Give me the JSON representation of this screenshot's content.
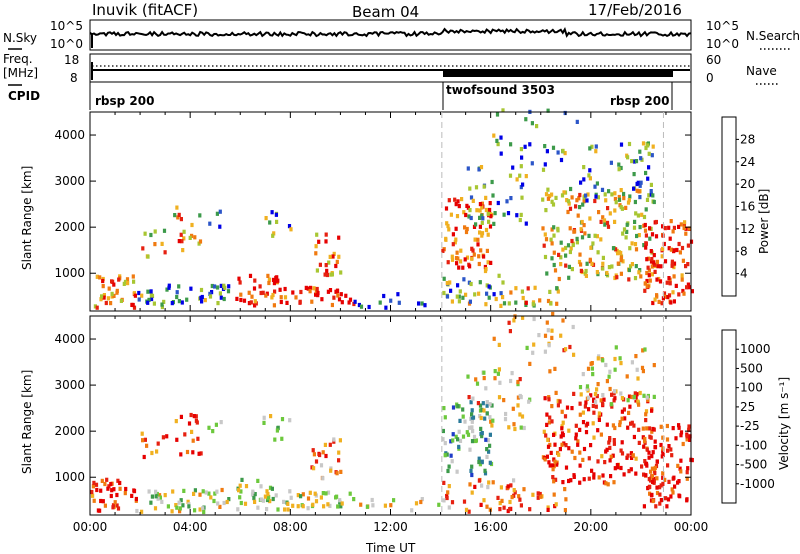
{
  "header": {
    "station": "Inuvik (fitACF)",
    "beam": "Beam 04",
    "date": "17/Feb/2016"
  },
  "noise_panel": {
    "left_label": "N.Sky",
    "right_label": "N.Search",
    "left_ticks": [
      "10^5",
      "10^0"
    ],
    "right_ticks": [
      "10^5",
      "10^0"
    ]
  },
  "freq_panel": {
    "left_label_1": "Freq.",
    "left_label_2": "[MHz]",
    "right_label": "Nave",
    "left_ticks": [
      "18",
      "8"
    ],
    "right_ticks": [
      "60",
      "0"
    ]
  },
  "cpid_panel": {
    "label": "CPID",
    "segments": [
      {
        "name": "rbsp 200",
        "start_ut": 0.0,
        "end_ut": 14.05
      },
      {
        "name": "twofsound 3503",
        "start_ut": 14.05,
        "end_ut": 22.9
      },
      {
        "name": "rbsp 200",
        "start_ut": 22.9,
        "end_ut": 24.0
      }
    ]
  },
  "chart_data": [
    {
      "type": "heatmap",
      "title": "",
      "ylabel": "Slant Range [km]",
      "xlabel": "",
      "xlim": [
        0,
        24
      ],
      "ylim": [
        180,
        4500
      ],
      "y_ticks": [
        1000,
        2000,
        3000,
        4000
      ],
      "colorbar": {
        "label": "Power [dB]",
        "ticks": [
          "4",
          "8",
          "12",
          "16",
          "20",
          "24",
          "28"
        ],
        "colors": [
          "#0000e6",
          "#2b55c8",
          "#3c9a4a",
          "#a8c632",
          "#f0b020",
          "#f07a10",
          "#e62010",
          "#e60000"
        ]
      }
    },
    {
      "type": "heatmap",
      "title": "",
      "ylabel": "Slant Range [km]",
      "xlabel": "Time UT",
      "xlim": [
        0,
        24
      ],
      "ylim": [
        180,
        4500
      ],
      "y_ticks": [
        1000,
        2000,
        3000,
        4000
      ],
      "x_ticks": [
        "00:00",
        "04:00",
        "08:00",
        "12:00",
        "16:00",
        "20:00",
        "00:00"
      ],
      "colorbar": {
        "label": "Velocity [m s⁻¹]",
        "ticks": [
          "1000",
          "500",
          "100",
          "25",
          "-25",
          "-100",
          "-500",
          "-1000"
        ],
        "colors": [
          "#1e3cc8",
          "#2a7a9a",
          "#3c9a4a",
          "#6cc83c",
          "#c8c8c8",
          "#f0b020",
          "#f07a10",
          "#e62010",
          "#e60000"
        ]
      }
    }
  ]
}
